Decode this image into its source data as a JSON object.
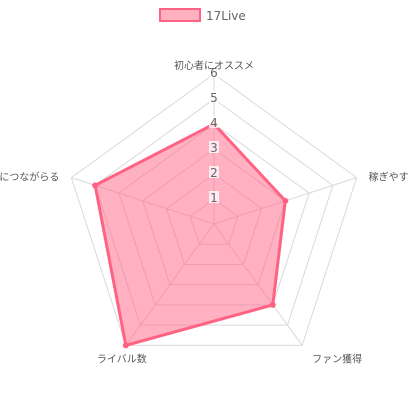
{
  "chart_data": {
    "type": "radar",
    "categories": [
      "初心者にオススメ",
      "稼ぎやすさ",
      "ファン獲得",
      "ライバル数",
      "夢につながらる"
    ],
    "series": [
      {
        "name": "17Live",
        "values": [
          4,
          3,
          4,
          6,
          5
        ],
        "fill": "#ff6384",
        "fill_opacity": 0.5,
        "stroke": "#ff6384"
      }
    ],
    "rlim": [
      0,
      6
    ],
    "ticks": [
      "1",
      "2",
      "3",
      "4",
      "5",
      "6"
    ],
    "legend": "top",
    "grid": true,
    "grid_color": "#d9d9d9"
  }
}
